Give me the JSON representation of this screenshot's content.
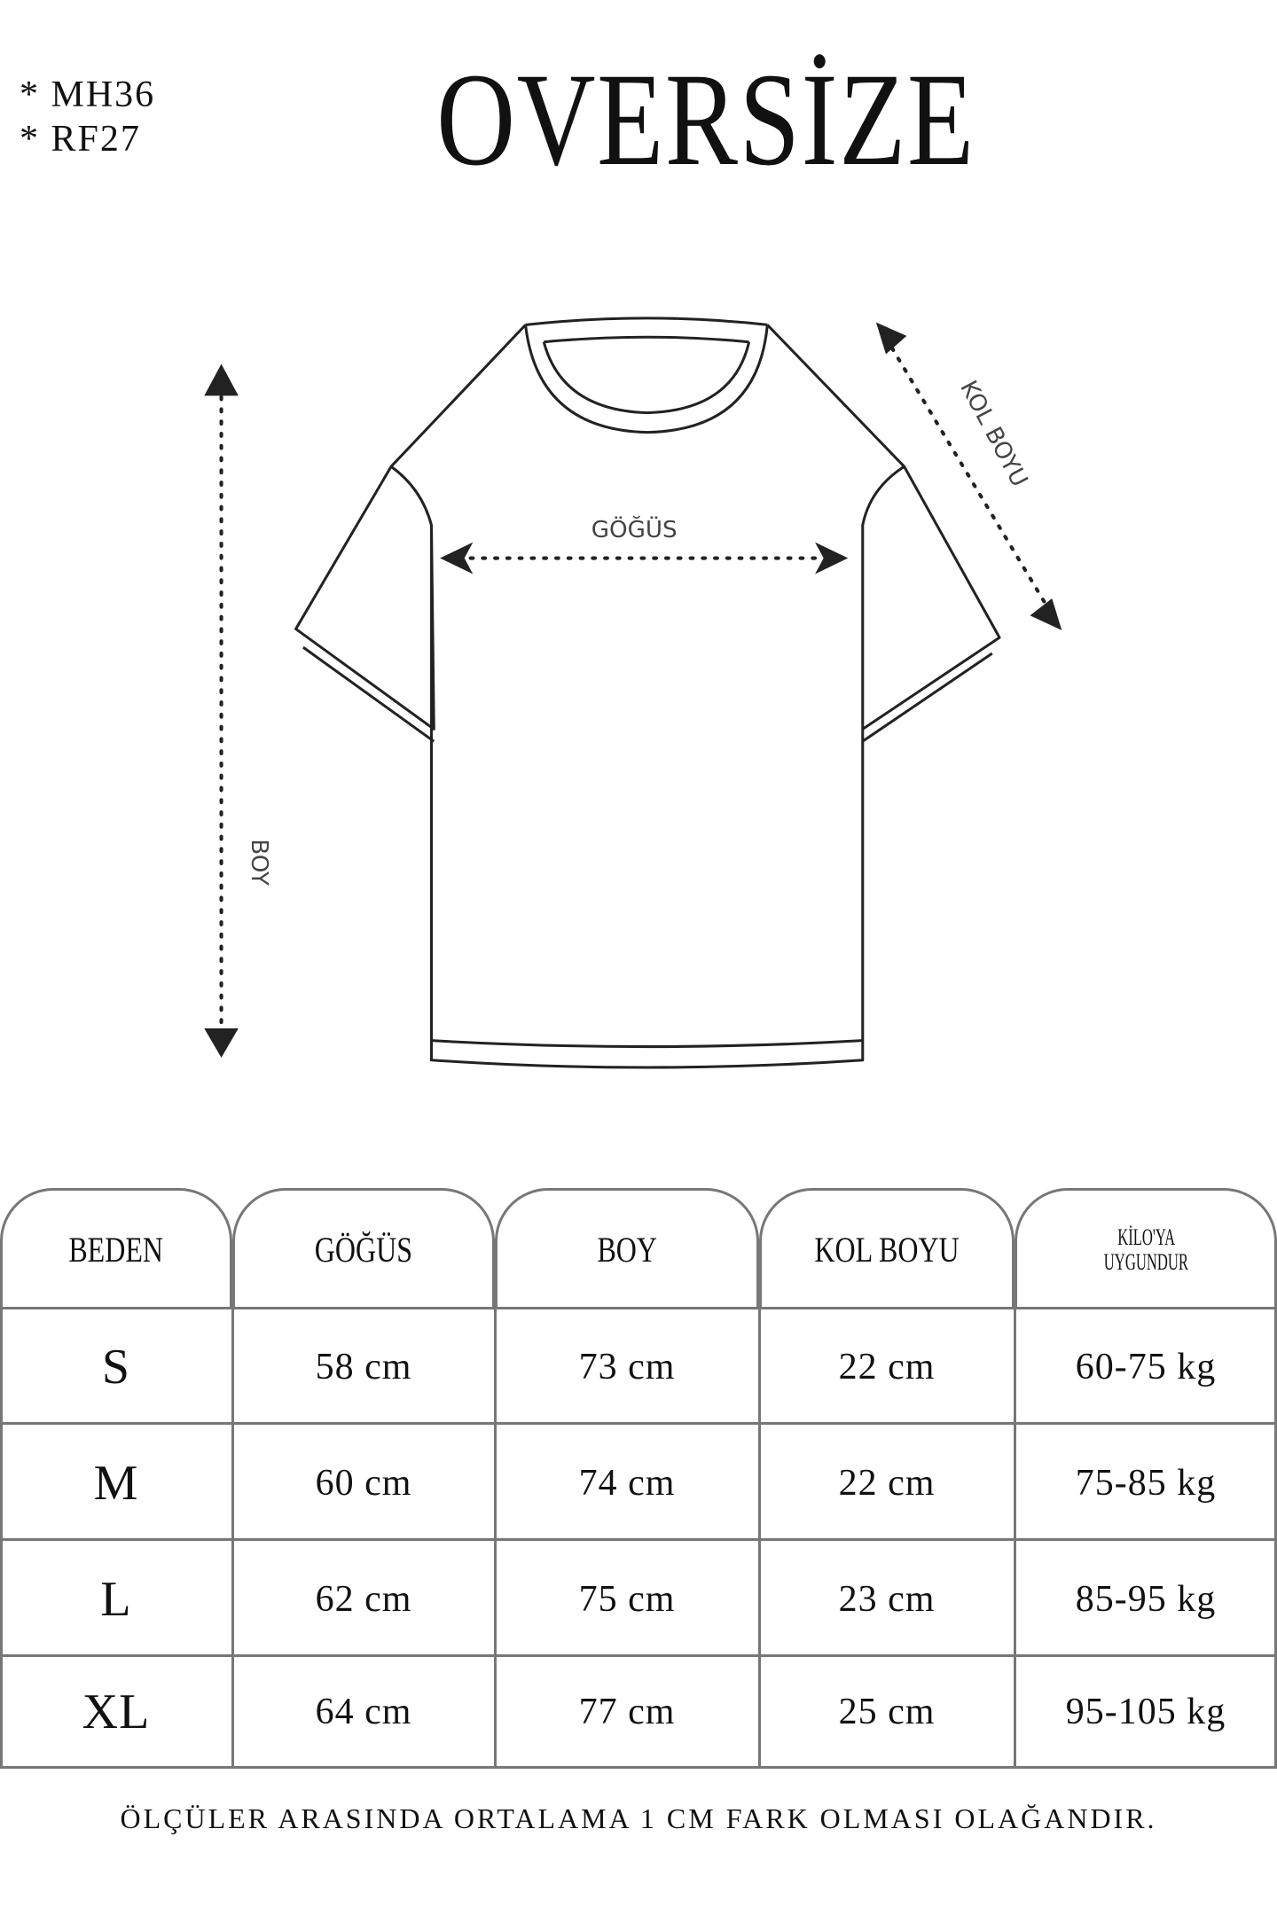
{
  "codes": [
    "* MH36",
    "* RF27"
  ],
  "title": "OVERSİZE",
  "diagram": {
    "chest": "GÖĞÜS",
    "length": "BOY",
    "sleeve": "KOL BOYU"
  },
  "table": {
    "headers": [
      "BEDEN",
      "GÖĞÜS",
      "BOY",
      "KOL BOYU",
      "KİLO'YA UYGUNDUR"
    ],
    "header_kilo_lines": [
      "KİLO'YA",
      "UYGUNDUR"
    ],
    "rows": [
      [
        "S",
        "58 cm",
        "73 cm",
        "22  cm",
        "60-75 kg"
      ],
      [
        "M",
        "60 cm",
        "74 cm",
        "22 cm",
        "75-85 kg"
      ],
      [
        "L",
        "62 cm",
        "75 cm",
        "23 cm",
        "85-95 kg"
      ],
      [
        "XL",
        "64 cm",
        "77 cm",
        "25 cm",
        "95-105 kg"
      ]
    ]
  },
  "footer": "ÖLÇÜLER ARASINDA ORTALAMA 1 CM FARK OLMASI OLAĞANDIR."
}
